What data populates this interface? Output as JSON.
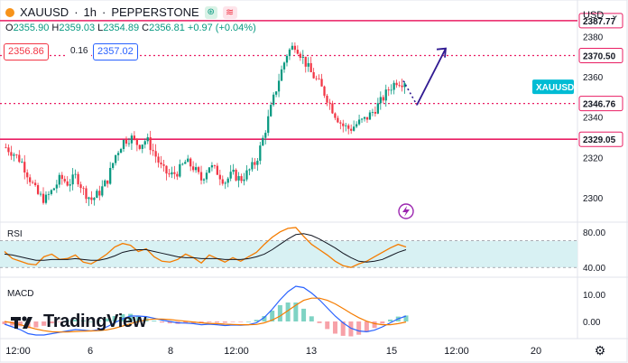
{
  "header": {
    "symbol": "XAUUSD",
    "interval": "1h",
    "broker": "PEPPERSTONE",
    "separator": "·",
    "badge_green": "⊛",
    "badge_pink": "≋"
  },
  "ohlc": {
    "o_label": "O",
    "o": "2355.90",
    "h_label": "H",
    "h": "2359.03",
    "l_label": "L",
    "l": "2354.89",
    "c_label": "C",
    "c": "2356.81",
    "change": "+0.97 (+0.04%)"
  },
  "quote": {
    "sell": "2356.86",
    "spread": "0.16",
    "buy": "2357.02"
  },
  "currency_menu": {
    "label": "USD",
    "chevron": "⌄"
  },
  "panes": {
    "rsi_label": "RSI",
    "macd_label": "MACD"
  },
  "logo": {
    "text": "TradingView",
    "icon": "tradingview-logo-icon"
  },
  "colors": {
    "up": "#089981",
    "down": "#f23645",
    "level": "#e91e63",
    "rsi": "#f57c00",
    "rsi_ma": "#131722",
    "rsi_band": "#d8f1f3",
    "macd": "#2962ff",
    "signal": "#f57c00",
    "arrow": "#311b92",
    "symbol_tag": "#00bcd4"
  },
  "chart_data": {
    "type": "candlestick",
    "symbol_tag": "XAUUSD",
    "price_axis": {
      "ticks": [
        2300,
        2320,
        2340,
        2360,
        2380
      ],
      "ylim": [
        2288,
        2398
      ]
    },
    "time_axis": {
      "ticks": [
        "12:00",
        "6",
        "8",
        "12:00",
        "13",
        "15",
        "12:00",
        "20"
      ]
    },
    "levels": [
      {
        "value": 2387.77,
        "label": "2387.77",
        "style": "solid"
      },
      {
        "value": 2370.5,
        "label": "2370.50",
        "style": "dotted"
      },
      {
        "value": 2346.76,
        "label": "2346.76",
        "style": "dotted"
      },
      {
        "value": 2329.05,
        "label": "2329.05",
        "style": "solid"
      }
    ],
    "last_price": 2356.81,
    "close_path": [
      2325,
      2322,
      2318,
      2310,
      2302,
      2299,
      2304,
      2310,
      2307,
      2311,
      2303,
      2299,
      2303,
      2309,
      2321,
      2328,
      2330,
      2326,
      2329,
      2322,
      2314,
      2311,
      2313,
      2318,
      2315,
      2309,
      2316,
      2313,
      2308,
      2312,
      2309,
      2313,
      2318,
      2331,
      2346,
      2360,
      2372,
      2376,
      2369,
      2362,
      2357,
      2350,
      2342,
      2336,
      2334,
      2337,
      2339,
      2343,
      2348,
      2354,
      2358,
      2357
    ],
    "projection": [
      {
        "from": 2358,
        "to": 2346,
        "style": "dotted"
      },
      {
        "from": 2346,
        "to": 2374,
        "style": "solid-arrow"
      }
    ],
    "rsi": {
      "ticks": [
        40,
        80
      ],
      "ylim": [
        30,
        90
      ],
      "band": [
        40,
        70
      ],
      "values": [
        58,
        50,
        47,
        44,
        43,
        52,
        55,
        49,
        50,
        54,
        46,
        44,
        49,
        55,
        63,
        67,
        65,
        58,
        61,
        52,
        47,
        46,
        49,
        55,
        51,
        45,
        54,
        50,
        46,
        51,
        47,
        52,
        57,
        66,
        74,
        80,
        84,
        85,
        75,
        66,
        60,
        54,
        47,
        42,
        40,
        44,
        47,
        52,
        57,
        62,
        66,
        63
      ],
      "ma": [
        55,
        54,
        52,
        50,
        48,
        48,
        49,
        49,
        49,
        50,
        49,
        48,
        48,
        50,
        53,
        57,
        59,
        60,
        60,
        58,
        56,
        54,
        52,
        51,
        51,
        50,
        50,
        50,
        49,
        49,
        49,
        50,
        52,
        55,
        60,
        66,
        72,
        77,
        78,
        76,
        72,
        67,
        62,
        56,
        51,
        47,
        46,
        47,
        49,
        53,
        57,
        60
      ]
    },
    "macd": {
      "ticks": [
        0.0,
        10.0
      ],
      "ylim": [
        -6,
        16
      ],
      "macd": [
        -1,
        -2,
        -3,
        -4.5,
        -5,
        -5,
        -4.5,
        -4,
        -3.5,
        -3,
        -3.2,
        -3.5,
        -3,
        -2,
        -0.5,
        1,
        2,
        2,
        1.8,
        1.2,
        0.5,
        0,
        -0.5,
        -0.6,
        -0.8,
        -1.2,
        -1,
        -1.2,
        -1.5,
        -1.3,
        -1.4,
        -1.2,
        -0.5,
        1.5,
        4.5,
        8,
        11,
        13,
        12.5,
        10.5,
        8,
        5,
        2,
        -0.5,
        -2.5,
        -3.5,
        -3.8,
        -3.2,
        -2,
        -0.5,
        1,
        2
      ],
      "signal": [
        0,
        -0.5,
        -1.2,
        -2,
        -2.8,
        -3.4,
        -3.8,
        -3.9,
        -3.9,
        -3.7,
        -3.6,
        -3.5,
        -3.4,
        -3.1,
        -2.5,
        -1.7,
        -0.8,
        0,
        0.6,
        0.9,
        0.9,
        0.7,
        0.4,
        0.1,
        -0.2,
        -0.5,
        -0.7,
        -0.8,
        -1,
        -1.1,
        -1.2,
        -1.2,
        -1.1,
        -0.5,
        0.5,
        2,
        4,
        6,
        7.8,
        8.6,
        8.6,
        7.8,
        6.5,
        4.8,
        3,
        1.4,
        0.1,
        -0.8,
        -1.2,
        -1.2,
        -0.8,
        -0.2
      ]
    }
  }
}
